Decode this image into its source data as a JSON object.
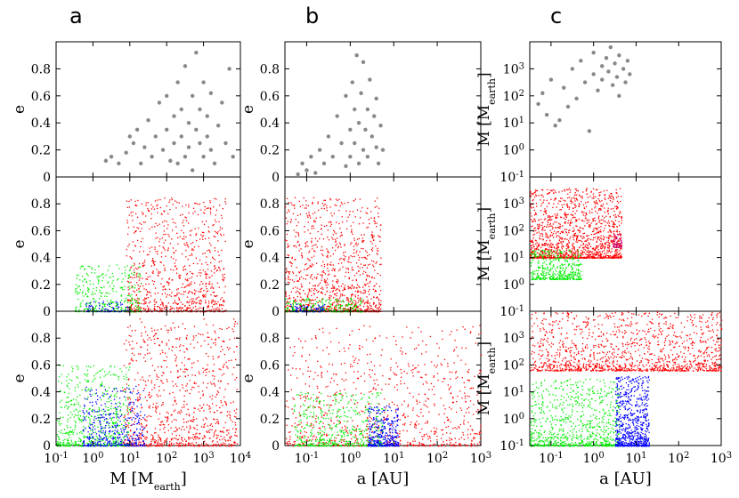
{
  "figure": {
    "panel_letters": [
      "a",
      "b",
      "c"
    ],
    "colors": {
      "observed": "#888888",
      "red": "#ff0000",
      "green": "#00ee00",
      "blue": "#0000ff",
      "magenta": "#cc0066"
    }
  },
  "chart_data": [
    {
      "id": "a-top",
      "type": "scatter",
      "column": "a",
      "row": 0,
      "xscale": "log",
      "xlim": [
        -1,
        4
      ],
      "ylim": [
        0,
        1
      ],
      "ylabel": "e",
      "yticks": [
        "0",
        "0.2",
        "0.4",
        "0.6",
        "0.8"
      ],
      "series": [
        {
          "name": "observed",
          "color": "#888888",
          "points": [
            [
              0.35,
              0.12
            ],
            [
              0.5,
              0.15
            ],
            [
              0.7,
              0.1
            ],
            [
              0.9,
              0.18
            ],
            [
              1.0,
              0.3
            ],
            [
              1.1,
              0.25
            ],
            [
              1.2,
              0.35
            ],
            [
              1.3,
              0.1
            ],
            [
              1.4,
              0.22
            ],
            [
              1.5,
              0.42
            ],
            [
              1.6,
              0.15
            ],
            [
              1.7,
              0.3
            ],
            [
              1.8,
              0.55
            ],
            [
              1.9,
              0.2
            ],
            [
              2.0,
              0.35
            ],
            [
              2.0,
              0.6
            ],
            [
              2.1,
              0.12
            ],
            [
              2.2,
              0.45
            ],
            [
              2.2,
              0.25
            ],
            [
              2.3,
              0.7
            ],
            [
              2.3,
              0.1
            ],
            [
              2.4,
              0.3
            ],
            [
              2.4,
              0.5
            ],
            [
              2.5,
              0.15
            ],
            [
              2.5,
              0.82
            ],
            [
              2.6,
              0.4
            ],
            [
              2.6,
              0.22
            ],
            [
              2.7,
              0.6
            ],
            [
              2.7,
              0.05
            ],
            [
              2.8,
              0.35
            ],
            [
              2.8,
              0.92
            ],
            [
              2.9,
              0.25
            ],
            [
              2.9,
              0.5
            ],
            [
              3.0,
              0.15
            ],
            [
              3.0,
              0.7
            ],
            [
              3.1,
              0.3
            ],
            [
              3.1,
              0.45
            ],
            [
              3.2,
              0.2
            ],
            [
              3.2,
              0.62
            ],
            [
              3.3,
              0.1
            ],
            [
              3.4,
              0.38
            ],
            [
              3.5,
              0.55
            ],
            [
              3.6,
              0.25
            ],
            [
              3.7,
              0.8
            ],
            [
              3.8,
              0.15
            ]
          ]
        }
      ]
    },
    {
      "id": "a-mid",
      "type": "scatter",
      "column": "a",
      "row": 1,
      "xscale": "log",
      "xlim": [
        -1,
        4
      ],
      "ylim": [
        0,
        1
      ],
      "ylabel": "e",
      "yticks": [
        "0",
        "0.2",
        "0.4",
        "0.6",
        "0.8"
      ],
      "series": [
        {
          "name": "red",
          "color": "#ff0000",
          "seed": 11,
          "count": 900,
          "x": [
            0.9,
            3.6
          ],
          "y_max": 0.85
        },
        {
          "name": "green",
          "color": "#00ee00",
          "seed": 12,
          "count": 350,
          "x": [
            -0.5,
            1.3
          ],
          "y_max": 0.35
        },
        {
          "name": "blue",
          "color": "#0000ff",
          "seed": 13,
          "count": 80,
          "x": [
            -0.2,
            1.0
          ],
          "y_max": 0.08
        }
      ]
    },
    {
      "id": "a-bot",
      "type": "scatter",
      "column": "a",
      "row": 2,
      "xscale": "log",
      "xlim": [
        -1,
        4
      ],
      "ylim": [
        0,
        1
      ],
      "ylabel": "e",
      "yticks": [
        "0",
        "0.2",
        "0.4",
        "0.6",
        "0.8"
      ],
      "xlabel": "M [M",
      "xlabel_sub": "earth",
      "xlabel_end": "]",
      "xticks": [
        {
          "base": "10",
          "exp": "-1"
        },
        {
          "base": "10",
          "exp": "0"
        },
        {
          "base": "10",
          "exp": "1"
        },
        {
          "base": "10",
          "exp": "2"
        },
        {
          "base": "10",
          "exp": "3"
        },
        {
          "base": "10",
          "exp": "4"
        }
      ],
      "series": [
        {
          "name": "red",
          "color": "#ff0000",
          "seed": 21,
          "count": 900,
          "x": [
            0.8,
            3.9
          ],
          "y_max": 0.95
        },
        {
          "name": "green",
          "color": "#00ee00",
          "seed": 22,
          "count": 600,
          "x": [
            -1.0,
            1.0
          ],
          "y_max": 0.6
        },
        {
          "name": "blue",
          "color": "#0000ff",
          "seed": 23,
          "count": 400,
          "x": [
            -0.3,
            1.4
          ],
          "y_max": 0.45
        }
      ]
    },
    {
      "id": "b-top",
      "type": "scatter",
      "column": "b",
      "row": 0,
      "xscale": "log",
      "xlim": [
        -1.5,
        3
      ],
      "ylim": [
        0,
        1
      ],
      "ylabel": "e",
      "yticks": [
        "0",
        "0.2",
        "0.4",
        "0.6",
        "0.8"
      ],
      "series": [
        {
          "name": "observed",
          "color": "#888888",
          "points": [
            [
              -1.2,
              0.02
            ],
            [
              -1.1,
              0.1
            ],
            [
              -1.0,
              0.05
            ],
            [
              -0.9,
              0.15
            ],
            [
              -0.8,
              0.03
            ],
            [
              -0.7,
              0.2
            ],
            [
              -0.6,
              0.1
            ],
            [
              -0.5,
              0.3
            ],
            [
              -0.4,
              0.15
            ],
            [
              -0.3,
              0.45
            ],
            [
              -0.2,
              0.25
            ],
            [
              -0.1,
              0.08
            ],
            [
              -0.1,
              0.6
            ],
            [
              0.0,
              0.35
            ],
            [
              0.0,
              0.15
            ],
            [
              0.05,
              0.7
            ],
            [
              0.1,
              0.25
            ],
            [
              0.1,
              0.5
            ],
            [
              0.15,
              0.9
            ],
            [
              0.2,
              0.1
            ],
            [
              0.2,
              0.4
            ],
            [
              0.25,
              0.62
            ],
            [
              0.3,
              0.2
            ],
            [
              0.3,
              0.85
            ],
            [
              0.35,
              0.35
            ],
            [
              0.4,
              0.5
            ],
            [
              0.4,
              0.15
            ],
            [
              0.45,
              0.72
            ],
            [
              0.5,
              0.3
            ],
            [
              0.55,
              0.45
            ],
            [
              0.6,
              0.22
            ],
            [
              0.6,
              0.58
            ],
            [
              0.65,
              0.1
            ],
            [
              0.7,
              0.38
            ],
            [
              0.75,
              0.2
            ]
          ]
        }
      ]
    },
    {
      "id": "b-mid",
      "type": "scatter",
      "column": "b",
      "row": 1,
      "xscale": "log",
      "xlim": [
        -1.5,
        3
      ],
      "ylim": [
        0,
        1
      ],
      "ylabel": "e",
      "yticks": [
        "0",
        "0.2",
        "0.4",
        "0.6",
        "0.8"
      ],
      "series": [
        {
          "name": "red",
          "color": "#ff0000",
          "seed": 31,
          "count": 1100,
          "x": [
            -1.5,
            0.7
          ],
          "y_max": 0.85
        },
        {
          "name": "green",
          "color": "#00ee00",
          "seed": 32,
          "count": 250,
          "x": [
            -1.5,
            0.3
          ],
          "y_max": 0.1
        },
        {
          "name": "blue",
          "color": "#0000ff",
          "seed": 33,
          "count": 80,
          "x": [
            -1.4,
            -0.6
          ],
          "y_max": 0.06
        }
      ]
    },
    {
      "id": "b-bot",
      "type": "scatter",
      "column": "b",
      "row": 2,
      "xscale": "log",
      "xlim": [
        -1.5,
        3
      ],
      "ylim": [
        0,
        1
      ],
      "ylabel": "e",
      "yticks": [
        "0",
        "0.2",
        "0.4",
        "0.6",
        "0.8"
      ],
      "xlabel": "a [AU]",
      "xticks": [
        {
          "base": "10",
          "exp": "-1"
        },
        {
          "base": "10",
          "exp": "0"
        },
        {
          "base": "10",
          "exp": "1"
        },
        {
          "base": "10",
          "exp": "2"
        },
        {
          "base": "10",
          "exp": "3"
        }
      ],
      "series": [
        {
          "name": "red",
          "color": "#ff0000",
          "seed": 41,
          "count": 900,
          "x": [
            -1.5,
            3.0
          ],
          "y_max": 0.9
        },
        {
          "name": "green",
          "color": "#00ee00",
          "seed": 42,
          "count": 500,
          "x": [
            -1.3,
            0.8
          ],
          "y_max": 0.4
        },
        {
          "name": "blue",
          "color": "#0000ff",
          "seed": 43,
          "count": 350,
          "x": [
            0.4,
            1.1
          ],
          "y_max": 0.3
        }
      ]
    },
    {
      "id": "c-top",
      "type": "scatter",
      "column": "c",
      "row": 0,
      "xscale": "log",
      "xlim": [
        -1.5,
        3
      ],
      "yscale": "log",
      "ylim": [
        -1,
        4
      ],
      "ylabel": "M [M",
      "ylabel_sub": "earth",
      "ylabel_end": "]",
      "yticks": [
        {
          "base": "10",
          "exp": "-1"
        },
        {
          "base": "10",
          "exp": "0"
        },
        {
          "base": "10",
          "exp": "1"
        },
        {
          "base": "10",
          "exp": "2"
        },
        {
          "base": "10",
          "exp": "3"
        }
      ],
      "series": [
        {
          "name": "observed",
          "color": "#888888",
          "points": [
            [
              -1.3,
              1.7
            ],
            [
              -1.2,
              2.1
            ],
            [
              -1.1,
              1.3
            ],
            [
              -1.0,
              2.6
            ],
            [
              -0.9,
              0.9
            ],
            [
              -0.8,
              1.1
            ],
            [
              -0.7,
              2.3
            ],
            [
              -0.6,
              1.6
            ],
            [
              -0.5,
              3.0
            ],
            [
              -0.4,
              1.9
            ],
            [
              -0.3,
              3.3
            ],
            [
              -0.2,
              2.5
            ],
            [
              -0.1,
              0.7
            ],
            [
              0.0,
              2.8
            ],
            [
              0.0,
              3.6
            ],
            [
              0.1,
              2.2
            ],
            [
              0.2,
              3.1
            ],
            [
              0.2,
              2.6
            ],
            [
              0.3,
              3.4
            ],
            [
              0.35,
              2.9
            ],
            [
              0.4,
              3.8
            ],
            [
              0.45,
              2.4
            ],
            [
              0.5,
              3.2
            ],
            [
              0.55,
              2.7
            ],
            [
              0.6,
              3.5
            ],
            [
              0.6,
              2.0
            ],
            [
              0.7,
              3.0
            ],
            [
              0.75,
              2.5
            ],
            [
              0.8,
              3.3
            ],
            [
              0.85,
              2.8
            ]
          ]
        }
      ]
    },
    {
      "id": "c-mid",
      "type": "scatter",
      "column": "c",
      "row": 1,
      "xscale": "log",
      "xlim": [
        -1.5,
        3
      ],
      "yscale": "log",
      "ylim": [
        -1,
        4
      ],
      "ylabel": "M [M",
      "ylabel_sub": "earth",
      "ylabel_end": "]",
      "yticks": [
        {
          "base": "10",
          "exp": "-1"
        },
        {
          "base": "10",
          "exp": "0"
        },
        {
          "base": "10",
          "exp": "1"
        },
        {
          "base": "10",
          "exp": "2"
        },
        {
          "base": "10",
          "exp": "3"
        }
      ],
      "series": [
        {
          "name": "red",
          "color": "#ff0000",
          "seed": 51,
          "count": 1400,
          "x": [
            -1.5,
            0.65
          ],
          "y_min": 1.0,
          "y_max": 3.6
        },
        {
          "name": "green",
          "color": "#00ee00",
          "seed": 52,
          "count": 400,
          "x": [
            -1.5,
            -0.3
          ],
          "y_min": 0.2,
          "y_max": 1.3
        },
        {
          "name": "magenta",
          "color": "#cc0066",
          "seed": 53,
          "count": 60,
          "x": [
            0.45,
            0.65
          ],
          "y_min": 1.4,
          "y_max": 1.9
        }
      ]
    },
    {
      "id": "c-bot",
      "type": "scatter",
      "column": "c",
      "row": 2,
      "xscale": "log",
      "xlim": [
        -1.5,
        3
      ],
      "yscale": "log",
      "ylim": [
        -1,
        4
      ],
      "ylabel": "M [M",
      "ylabel_sub": "earth",
      "ylabel_end": "]",
      "yticks": [
        {
          "base": "10",
          "exp": "-1"
        },
        {
          "base": "10",
          "exp": "0"
        },
        {
          "base": "10",
          "exp": "1"
        },
        {
          "base": "10",
          "exp": "2"
        },
        {
          "base": "10",
          "exp": "3"
        }
      ],
      "xlabel": "a [AU]",
      "xticks": [
        {
          "base": "10",
          "exp": "-1"
        },
        {
          "base": "10",
          "exp": "0"
        },
        {
          "base": "10",
          "exp": "1"
        },
        {
          "base": "10",
          "exp": "2"
        },
        {
          "base": "10",
          "exp": "3"
        }
      ],
      "series": [
        {
          "name": "red",
          "color": "#ff0000",
          "seed": 61,
          "count": 1300,
          "x": [
            -1.5,
            3.0
          ],
          "y_min": 1.8,
          "y_max": 4.0
        },
        {
          "name": "green",
          "color": "#00ee00",
          "seed": 62,
          "count": 800,
          "x": [
            -1.5,
            0.6
          ],
          "y_min": -1.0,
          "y_max": 1.5
        },
        {
          "name": "blue",
          "color": "#0000ff",
          "seed": 63,
          "count": 700,
          "x": [
            0.5,
            1.3
          ],
          "y_min": -1.0,
          "y_max": 1.6
        }
      ]
    }
  ]
}
